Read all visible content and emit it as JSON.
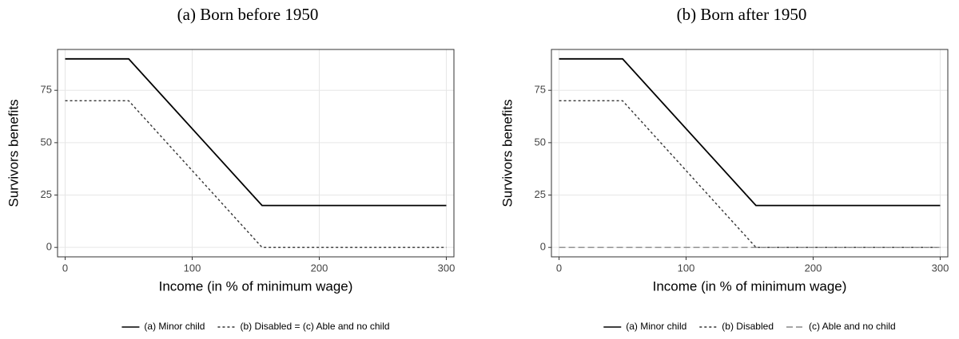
{
  "chart_data": [
    {
      "type": "line",
      "title": "(a) Born before 1950",
      "xlabel": "Income (in % of minimum wage)",
      "ylabel": "Survivors benefits",
      "x": [
        0,
        50,
        155,
        300
      ],
      "series": [
        {
          "name": "(a) Minor child",
          "color": "#000000",
          "line_style": "solid",
          "values": [
            90,
            90,
            20,
            20
          ]
        },
        {
          "name": "(b) Disabled = (c) Able and no child",
          "color": "#333333",
          "line_style": "dotted",
          "values": [
            70,
            70,
            0,
            0
          ]
        }
      ],
      "xlim": [
        -6,
        306
      ],
      "ylim": [
        -4.5,
        94.5
      ],
      "xticks": [
        0,
        100,
        200,
        300
      ],
      "yticks": [
        0,
        25,
        50,
        75
      ],
      "grid": true,
      "legend": "bottom"
    },
    {
      "type": "line",
      "title": "(b) Born after 1950",
      "xlabel": "Income (in % of minimum wage)",
      "ylabel": "Survivors benefits",
      "x": [
        0,
        50,
        155,
        300
      ],
      "series": [
        {
          "name": "(a) Minor child",
          "color": "#000000",
          "line_style": "solid",
          "values": [
            90,
            90,
            20,
            20
          ]
        },
        {
          "name": "(b) Disabled",
          "color": "#333333",
          "line_style": "dotted",
          "values": [
            70,
            70,
            0,
            0
          ]
        },
        {
          "name": "(c) Able and no child",
          "color": "#888888",
          "line_style": "dashed",
          "values": [
            0,
            0,
            0,
            0
          ]
        }
      ],
      "xlim": [
        -6,
        306
      ],
      "ylim": [
        -4.5,
        94.5
      ],
      "xticks": [
        0,
        100,
        200,
        300
      ],
      "yticks": [
        0,
        25,
        50,
        75
      ],
      "grid": true,
      "legend": "bottom"
    }
  ]
}
